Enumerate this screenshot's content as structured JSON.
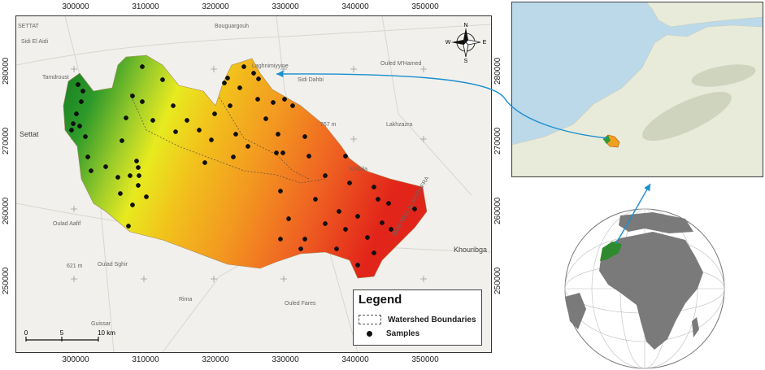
{
  "map": {
    "x_ticks": [
      "300000",
      "310000",
      "320000",
      "330000",
      "340000",
      "350000"
    ],
    "y_ticks": [
      "280000",
      "270000",
      "260000",
      "250000"
    ],
    "place_labels": [
      {
        "text": "SETTAT",
        "size": "s"
      },
      {
        "text": "Sidi El Aidi",
        "size": "s"
      },
      {
        "text": "Settat",
        "size": "m"
      },
      {
        "text": "Tamdroust",
        "size": "s"
      },
      {
        "text": "Bouguargouh",
        "size": "s"
      },
      {
        "text": "Ouled M'Hamed",
        "size": "s"
      },
      {
        "text": "Sidi Dahbi",
        "size": "s"
      },
      {
        "text": "Laghnimiyyine",
        "size": "s"
      },
      {
        "text": "Lakhzazra",
        "size": "s"
      },
      {
        "text": "N'Khila",
        "size": "s"
      },
      {
        "text": "Oulad Aafif",
        "size": "s"
      },
      {
        "text": "Ouled Fares",
        "size": "s"
      },
      {
        "text": "Oulad Sghir",
        "size": "s"
      },
      {
        "text": "Rima",
        "size": "s"
      },
      {
        "text": "Guissar",
        "size": "s"
      },
      {
        "text": "Khouribga",
        "size": "m"
      },
      {
        "text": "621 m",
        "size": "s"
      },
      {
        "text": "767 m",
        "size": "s"
      },
      {
        "text": "BENI MELLAL-KHENIFRA",
        "size": "s"
      }
    ],
    "compass": {
      "n": "N",
      "s": "S",
      "e": "E",
      "w": "W"
    },
    "scale": {
      "zero": "0",
      "mid": "5",
      "end": "10 km"
    }
  },
  "legend": {
    "title": "Legend",
    "boundary_label": "Watershed Boundaries",
    "samples_label": "Samples"
  },
  "colors": {
    "low_elev": "#1e8a1e",
    "mid_elev": "#e8e81c",
    "high_elev": "#e8351a",
    "arrow": "#1a8fd0",
    "sea": "#bcd9ea",
    "land": "#e9ecd9",
    "globe_land": "#7a7a7a",
    "morocco": "#2f8a2f"
  }
}
